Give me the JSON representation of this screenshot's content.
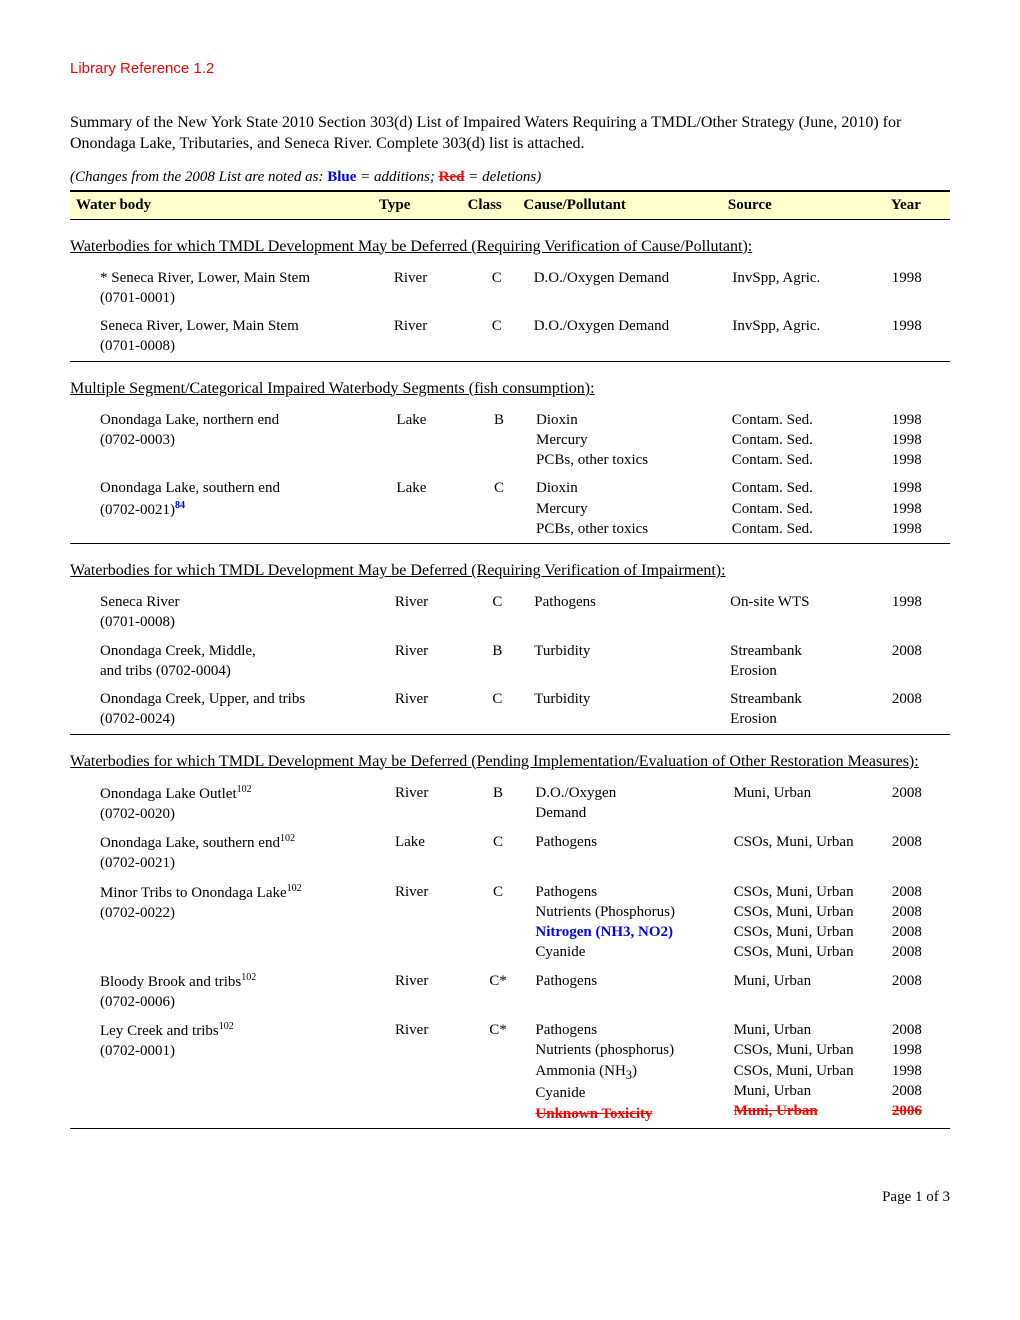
{
  "library_ref": "Library Reference 1.2",
  "summary": "Summary of the New York State 2010 Section 303(d) List of Impaired Waters Requiring a TMDL/Other Strategy (June, 2010) for Onondaga Lake, Tributaries, and Seneca River.  Complete 303(d) list is attached.",
  "changes_note_prefix": "(Changes from the 2008 List are noted as:  ",
  "changes_note_blue": "Blue",
  "changes_note_mid1": " = additions; ",
  "changes_note_red": "Red",
  "changes_note_mid2": " = deletions)",
  "columns": {
    "water_body": "Water body",
    "type": "Type",
    "class": "Class",
    "cause": "Cause/Pollutant",
    "source": "Source",
    "year": "Year"
  },
  "sections": [
    {
      "title": "Waterbodies for which TMDL Development May be Deferred (Requiring Verification of Cause/Pollutant):",
      "rows": [
        {
          "wb_line1": "* Seneca River, Lower, Main Stem",
          "wb_line2": "(0701-0001)",
          "type": "River",
          "class": "C",
          "causes": [
            "D.O./Oxygen Demand"
          ],
          "sources": [
            "InvSpp, Agric."
          ],
          "years": [
            "1998"
          ]
        },
        {
          "wb_line1": "Seneca River, Lower, Main Stem",
          "wb_line2": "(0701-0008)",
          "type": "River",
          "class": "C",
          "causes": [
            "D.O./Oxygen Demand"
          ],
          "sources": [
            "InvSpp, Agric."
          ],
          "years": [
            "1998"
          ]
        }
      ]
    },
    {
      "title": "Multiple Segment/Categorical Impaired Waterbody Segments (fish consumption):",
      "rows": [
        {
          "wb_line1": "Onondaga Lake, northern end",
          "wb_line2": "(0702-0003)",
          "type": "Lake",
          "class": "B",
          "causes": [
            "Dioxin",
            "Mercury",
            "PCBs, other toxics"
          ],
          "sources": [
            "Contam. Sed.",
            "Contam. Sed.",
            "Contam. Sed."
          ],
          "years": [
            "1998",
            "1998",
            "1998"
          ]
        },
        {
          "wb_line1": "Onondaga Lake, southern end",
          "wb_line2_html": "(0702-0021)<sup class=\"blue-txt\"><b>84</b></sup>",
          "type": "Lake",
          "class": "C",
          "causes": [
            "Dioxin",
            "Mercury",
            "PCBs, other toxics"
          ],
          "sources": [
            "Contam. Sed.",
            "Contam. Sed.",
            "Contam. Sed."
          ],
          "years": [
            "1998",
            "1998",
            "1998"
          ]
        }
      ]
    },
    {
      "title": "Waterbodies for which TMDL Development May be Deferred (Requiring Verification of Impairment):",
      "rows": [
        {
          "wb_line1": "Seneca River",
          "wb_line2": "(0701-0008)",
          "type": "River",
          "class": "C",
          "causes": [
            "Pathogens"
          ],
          "sources": [
            "On-site WTS"
          ],
          "years": [
            "1998"
          ]
        },
        {
          "wb_line1": "Onondaga Creek, Middle,",
          "wb_line2": "and tribs (0702-0004)",
          "type": "River",
          "class": "B",
          "causes": [
            "Turbidity"
          ],
          "sources_html": [
            "Streambank<br>Erosion"
          ],
          "years": [
            "2008"
          ]
        },
        {
          "wb_line1": "Onondaga Creek, Upper, and tribs",
          "wb_line2": "(0702-0024)",
          "type": "River",
          "class": "C",
          "causes": [
            "Turbidity"
          ],
          "sources_html": [
            "Streambank<br>Erosion"
          ],
          "years": [
            "2008"
          ]
        }
      ]
    },
    {
      "title": "Waterbodies for which TMDL Development May be Deferred (Pending Implementation/Evaluation of Other Restoration Measures):",
      "rows": [
        {
          "wb_line1_html": "Onondaga Lake Outlet<sup>102</sup>",
          "wb_line2": "(0702-0020)",
          "type": "River",
          "class": "B",
          "causes_html": [
            "D.O./Oxygen<br>Demand"
          ],
          "sources": [
            "Muni, Urban"
          ],
          "years": [
            "2008"
          ]
        },
        {
          "wb_line1_html": "Onondaga Lake, southern end<sup>102</sup>",
          "wb_line2": "(0702-0021)",
          "type": "Lake",
          "class": "C",
          "causes": [
            "Pathogens"
          ],
          "sources": [
            "CSOs, Muni, Urban"
          ],
          "years": [
            "2008"
          ]
        },
        {
          "wb_line1_html": "Minor Tribs to Onondaga Lake<sup>102</sup>",
          "wb_line2": "(0702-0022)",
          "type": "River",
          "class": "C",
          "causes_html": [
            "Pathogens",
            "Nutrients (Phosphorus)",
            "<span class=\"blue-txt\"><b>Nitrogen (NH3, NO2)</b></span>",
            "Cyanide"
          ],
          "sources": [
            "CSOs, Muni, Urban",
            "CSOs, Muni, Urban",
            "CSOs, Muni, Urban",
            "CSOs, Muni, Urban"
          ],
          "years": [
            "2008",
            "2008",
            "2008",
            "2008"
          ]
        },
        {
          "wb_line1_html": "Bloody Brook and tribs<sup>102</sup>",
          "wb_line2": "(0702-0006)",
          "type": "River",
          "class": "C*",
          "causes": [
            "Pathogens"
          ],
          "sources": [
            "Muni, Urban"
          ],
          "years": [
            "2008"
          ]
        },
        {
          "wb_line1_html": "Ley Creek and tribs<sup>102</sup>",
          "wb_line2": "(0702-0001)",
          "type": "River",
          "class": "C*",
          "causes_html": [
            "Pathogens",
            "Nutrients (phosphorus)",
            "Ammonia (NH<sub>3</sub>)",
            "Cyanide",
            "<span class=\"red-strike\">Unknown Toxicity</span>"
          ],
          "sources_html": [
            "Muni, Urban",
            "CSOs, Muni, Urban",
            "CSOs, Muni, Urban",
            "Muni, Urban",
            "<span class=\"red-strike\">Muni, Urban</span>"
          ],
          "years_html": [
            "2008",
            "1998",
            "1998",
            "2008",
            "<span class=\"red-strike\">2006</span>"
          ]
        }
      ]
    }
  ],
  "footer": "Page 1 of 3"
}
